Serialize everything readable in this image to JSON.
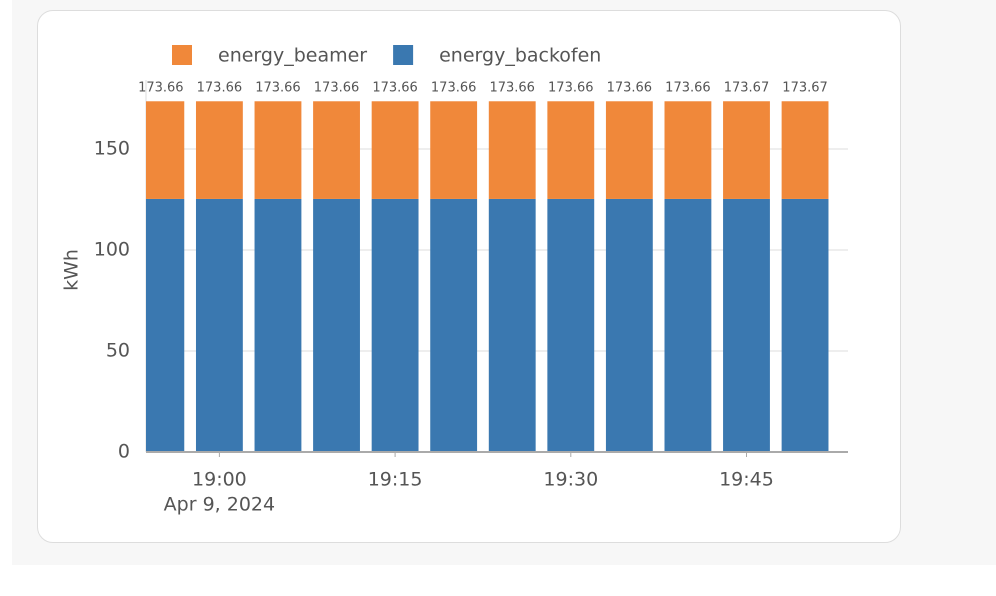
{
  "chart_data": {
    "type": "stacked-bar",
    "y_label": "kWh",
    "x": [
      "2024-04-09 18:55",
      "2024-04-09 19:00",
      "2024-04-09 19:05",
      "2024-04-09 19:10",
      "2024-04-09 19:15",
      "2024-04-09 19:20",
      "2024-04-09 19:25",
      "2024-04-09 19:30",
      "2024-04-09 19:35",
      "2024-04-09 19:40",
      "2024-04-09 19:45",
      "2024-04-09 19:50"
    ],
    "series": [
      {
        "name": "energy_beamer",
        "color": "#f0883a",
        "values": [
          48.36,
          48.36,
          48.36,
          48.36,
          48.36,
          48.36,
          48.36,
          48.36,
          48.36,
          48.36,
          48.37,
          48.37
        ]
      },
      {
        "name": "energy_backofen",
        "color": "#3a78b0",
        "values": [
          125.3,
          125.3,
          125.3,
          125.3,
          125.3,
          125.3,
          125.3,
          125.3,
          125.3,
          125.3,
          125.3,
          125.3
        ]
      }
    ],
    "totals": [
      173.66,
      173.66,
      173.66,
      173.66,
      173.66,
      173.66,
      173.66,
      173.66,
      173.66,
      173.66,
      173.67,
      173.67
    ],
    "xlim": [
      "2024-04-09 18:53:44",
      "2024-04-09 19:53:40"
    ],
    "xticks": [
      {
        "value": "2024-04-09 19:00",
        "label": "19:00"
      },
      {
        "value": "2024-04-09 19:15",
        "label": "19:15"
      },
      {
        "value": "2024-04-09 19:30",
        "label": "19:30"
      },
      {
        "value": "2024-04-09 19:45",
        "label": "19:45"
      }
    ],
    "x_date_label": "Apr 9, 2024",
    "ylim": [
      0,
      173.3
    ],
    "yticks": [
      0,
      50,
      100,
      150
    ],
    "grid": true
  }
}
